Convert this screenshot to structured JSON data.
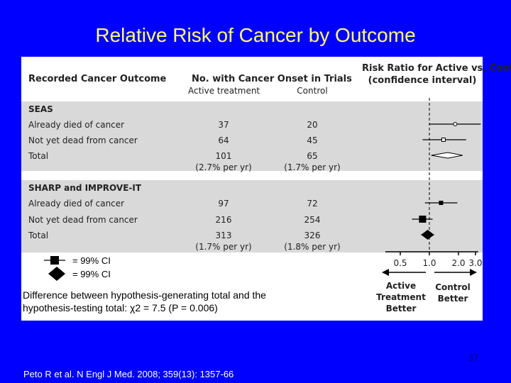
{
  "slide": {
    "title": "Relative Risk of Cancer by Outcome",
    "legend_square": "= 99% CI",
    "legend_diamond": "= 99% CI",
    "note_line1": "Difference between hypothesis-generating total and the",
    "note_line2": "hypothesis-testing total: χ2 = 7.5 (P = 0.006)",
    "page_number": "37",
    "citation": "Peto R et al. N Engl J Med. 2008; 359(13): 1357-66"
  },
  "table": {
    "col_outcome": "Recorded Cancer Outcome",
    "col_counts": "No. with Cancer Onset in Trials",
    "col_active": "Active treatment",
    "col_control": "Control",
    "col_ratio_line1": "Risk Ratio for Active vs. Control",
    "col_ratio_line2": "(confidence interval)",
    "groups": [
      {
        "name": "SEAS",
        "rows": [
          {
            "label": "Already died of cancer",
            "active": "37",
            "control": "20"
          },
          {
            "label": "Not yet dead from cancer",
            "active": "64",
            "control": "45"
          },
          {
            "label": "Total",
            "active": "101",
            "control": "65",
            "active_rate": "(2.7% per yr)",
            "control_rate": "(1.7% per yr)"
          }
        ]
      },
      {
        "name": "SHARP and IMPROVE-IT",
        "rows": [
          {
            "label": "Already died of cancer",
            "active": "97",
            "control": "72"
          },
          {
            "label": "Not yet dead from cancer",
            "active": "216",
            "control": "254"
          },
          {
            "label": "Total",
            "active": "313",
            "control": "326",
            "active_rate": "(1.7% per yr)",
            "control_rate": "(1.8% per yr)"
          }
        ]
      }
    ]
  },
  "chart_data": {
    "type": "scatter",
    "subtype": "forest-plot",
    "x_scale": "log",
    "xlim": [
      0.35,
      3.2
    ],
    "x_ticks": [
      "0.5",
      "1.0",
      "2.0",
      "3.0"
    ],
    "reference_line": 1.0,
    "xlabel_left": [
      "Active",
      "Treatment",
      "Better"
    ],
    "xlabel_right": [
      "Control",
      "Better"
    ],
    "points": [
      {
        "row": "SEAS / Already died of cancer",
        "ratio": 1.85,
        "lo": 1.0,
        "hi": 3.4,
        "marker": "open-circle"
      },
      {
        "row": "SEAS / Not yet dead from cancer",
        "ratio": 1.4,
        "lo": 0.85,
        "hi": 2.4,
        "marker": "open-square"
      },
      {
        "row": "SEAS / Total",
        "ratio": 1.55,
        "lo": 1.05,
        "hi": 2.2,
        "marker": "open-diamond"
      },
      {
        "row": "SHARP and IMPROVE-IT / Already died of cancer",
        "ratio": 1.32,
        "lo": 0.9,
        "hi": 1.95,
        "marker": "filled-square"
      },
      {
        "row": "SHARP and IMPROVE-IT / Not yet dead from cancer",
        "ratio": 0.85,
        "lo": 0.66,
        "hi": 1.08,
        "marker": "filled-square-large"
      },
      {
        "row": "SHARP and IMPROVE-IT / Total",
        "ratio": 0.96,
        "lo": 0.82,
        "hi": 1.12,
        "marker": "filled-diamond"
      }
    ]
  }
}
